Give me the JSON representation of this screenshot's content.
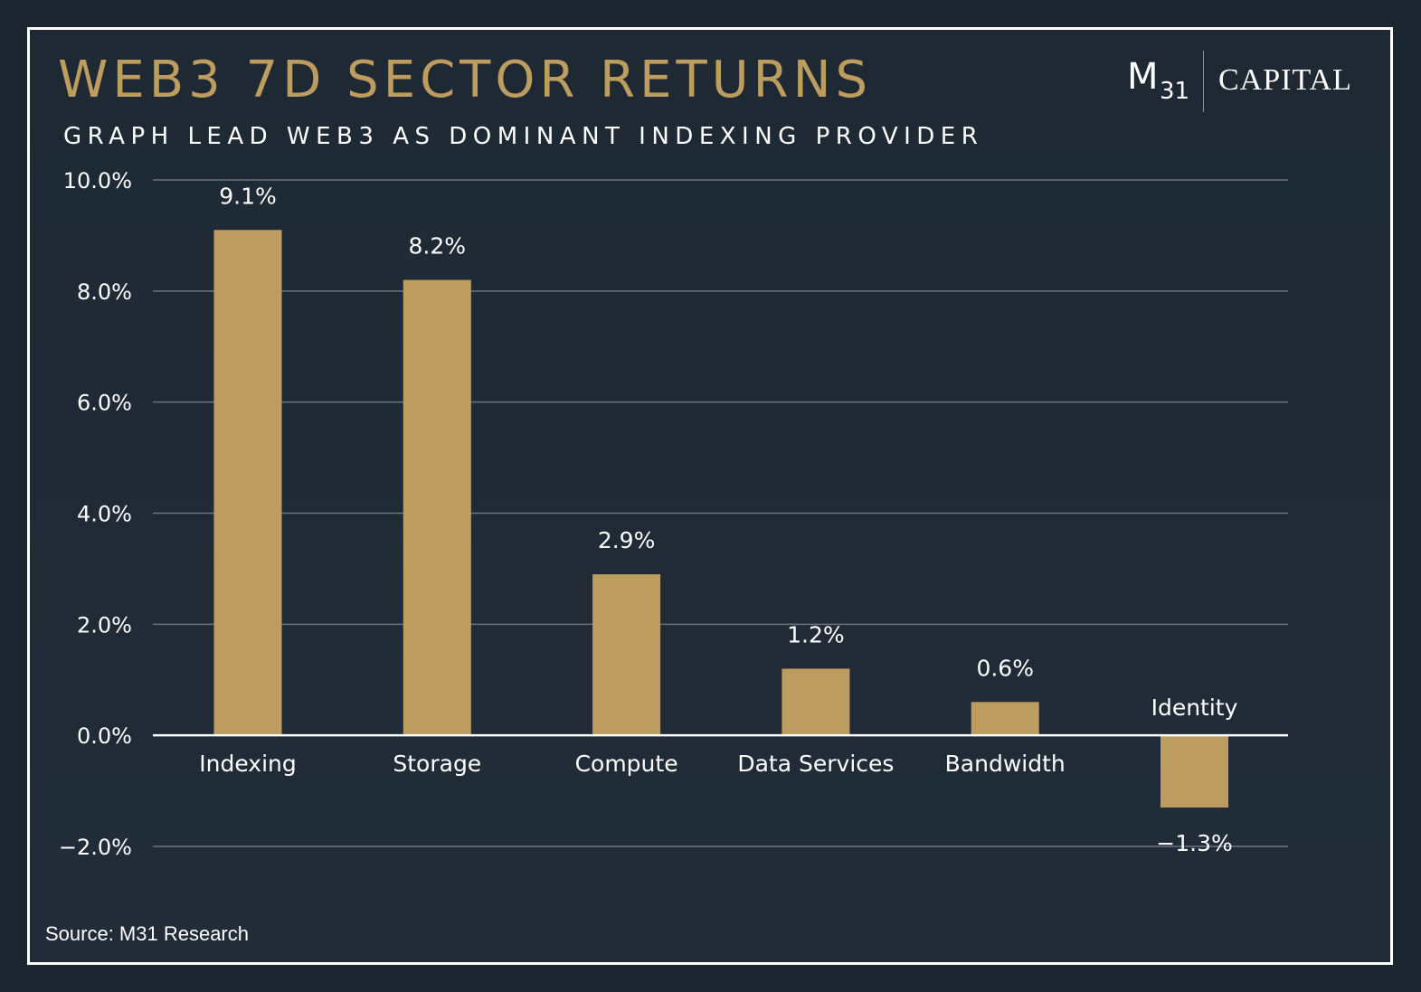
{
  "header": {
    "title": "WEB3 7D SECTOR RETURNS",
    "subtitle": "GRAPH LEAD WEB3 AS DOMINANT INDEXING PROVIDER"
  },
  "logo": {
    "m": "M",
    "sub": "31",
    "name": "CAPITAL"
  },
  "footer": {
    "source": "Source: M31 Research"
  },
  "colors": {
    "bar": "#bd9d5f",
    "title": "#bd9d5f",
    "grid": "#6b747d",
    "zero_line": "#ffffff",
    "text": "#ffffff",
    "background": "#1e2934"
  },
  "chart_data": {
    "type": "bar",
    "title": "WEB3 7D SECTOR RETURNS",
    "subtitle": "GRAPH LEAD WEB3 AS DOMINANT INDEXING PROVIDER",
    "categories": [
      "Indexing",
      "Storage",
      "Compute",
      "Data Services",
      "Bandwidth",
      "Identity"
    ],
    "values": [
      9.1,
      8.2,
      2.9,
      1.2,
      0.6,
      -1.3
    ],
    "data_labels": [
      "9.1%",
      "8.2%",
      "2.9%",
      "1.2%",
      "0.6%",
      "−1.3%"
    ],
    "ylim": [
      -2.0,
      10.0
    ],
    "yticks": [
      10.0,
      8.0,
      6.0,
      4.0,
      2.0,
      0.0,
      -2.0
    ],
    "ytick_labels": [
      "10.0%",
      "8.0%",
      "6.0%",
      "4.0%",
      "2.0%",
      "0.0%",
      "−2.0%"
    ],
    "xlabel": "",
    "ylabel": "",
    "grid": true,
    "legend": "none"
  }
}
